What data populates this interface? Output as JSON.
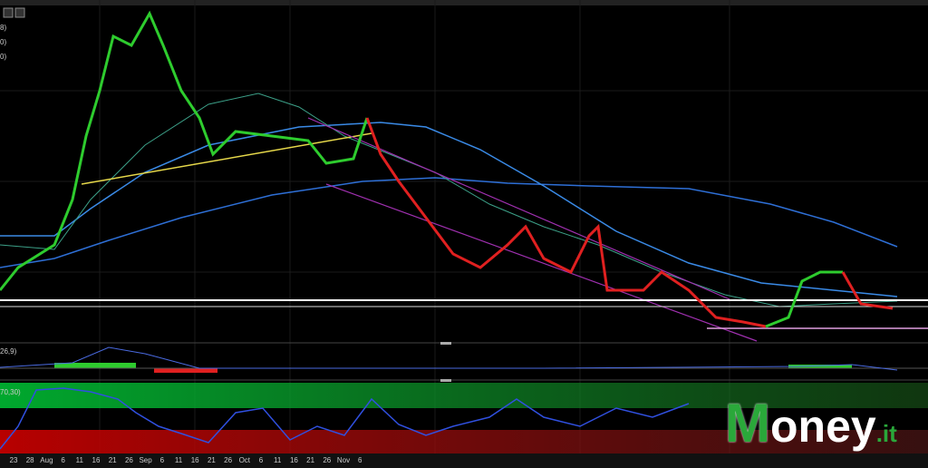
{
  "indicators": {
    "ma_labels": [
      "8)",
      "0)",
      "0)"
    ],
    "macd_label": "26,9)",
    "rsi_label": "70,30)"
  },
  "x_axis": {
    "labels": [
      "23",
      "28",
      "Aug",
      "6",
      "11",
      "16",
      "21",
      "26",
      "Sep",
      "6",
      "11",
      "16",
      "21",
      "26",
      "Oct",
      "6",
      "11",
      "16",
      "21",
      "26",
      "Nov",
      "6"
    ]
  },
  "logo": {
    "initial": "M",
    "rest": "oney",
    "suffix": ".it"
  }
}
